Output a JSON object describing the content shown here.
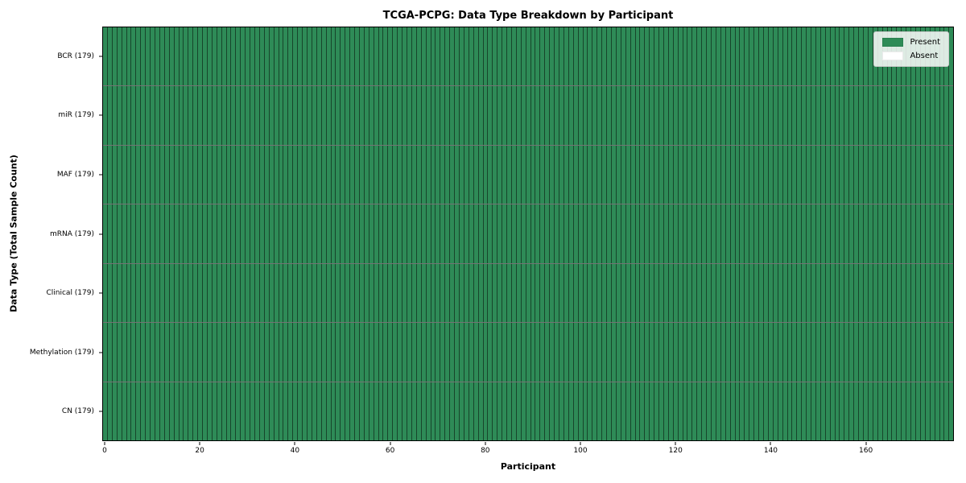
{
  "chart_data": {
    "type": "heatmap",
    "title": "TCGA-PCPG: Data Type Breakdown by Participant",
    "xlabel": "Participant",
    "ylabel": "Data Type (Total Sample Count)",
    "rows": [
      "BCR (179)",
      "miR (179)",
      "MAF (179)",
      "mRNA (179)",
      "Clinical (179)",
      "Methylation (179)",
      "CN (179)"
    ],
    "n_participants": 179,
    "x_ticks": [
      0,
      20,
      40,
      60,
      80,
      100,
      120,
      140,
      160
    ],
    "x_range": [
      -0.5,
      178.5
    ],
    "series": [
      {
        "name": "BCR (179)",
        "present_count": 179,
        "absent_count": 0
      },
      {
        "name": "miR (179)",
        "present_count": 179,
        "absent_count": 0
      },
      {
        "name": "MAF (179)",
        "present_count": 179,
        "absent_count": 0
      },
      {
        "name": "mRNA (179)",
        "present_count": 179,
        "absent_count": 0
      },
      {
        "name": "Clinical (179)",
        "present_count": 179,
        "absent_count": 0
      },
      {
        "name": "Methylation (179)",
        "present_count": 179,
        "absent_count": 0
      },
      {
        "name": "CN (179)",
        "present_count": 179,
        "absent_count": 0
      }
    ],
    "all_cells": "present",
    "legend": [
      {
        "label": "Present",
        "color": "#2e8b57"
      },
      {
        "label": "Absent",
        "color": "#ffffff"
      }
    ],
    "legend_position": "upper right",
    "colors": {
      "present": "#2e8b57",
      "absent": "#ffffff",
      "cell_edge": "rgba(0,0,0,0.5)",
      "spine": "#000000",
      "background": "#ffffff"
    },
    "grid": "cell-edges-on"
  }
}
